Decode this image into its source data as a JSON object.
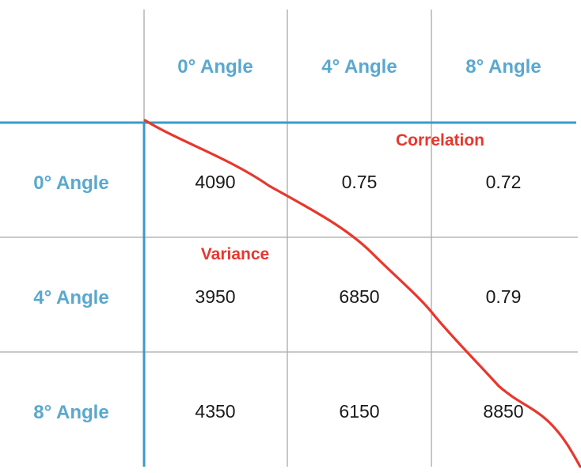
{
  "colors": {
    "header_text": "#5aa8cf",
    "axis_line": "#3a9bc7",
    "grid_line": "#a9a9a9",
    "cell_text": "#1a1a1a",
    "annotation": "#e8372d"
  },
  "chart_data": {
    "type": "table",
    "column_headers": [
      "0° Angle",
      "4° Angle",
      "8° Angle"
    ],
    "row_headers": [
      "0° Angle",
      "4° Angle",
      "8° Angle"
    ],
    "rows": [
      [
        "4090",
        "0.75",
        "0.72"
      ],
      [
        "3950",
        "6850",
        "0.79"
      ],
      [
        "4350",
        "6150",
        "8850"
      ]
    ]
  },
  "annotations": {
    "upper_label": "Correlation",
    "lower_label": "Variance"
  }
}
